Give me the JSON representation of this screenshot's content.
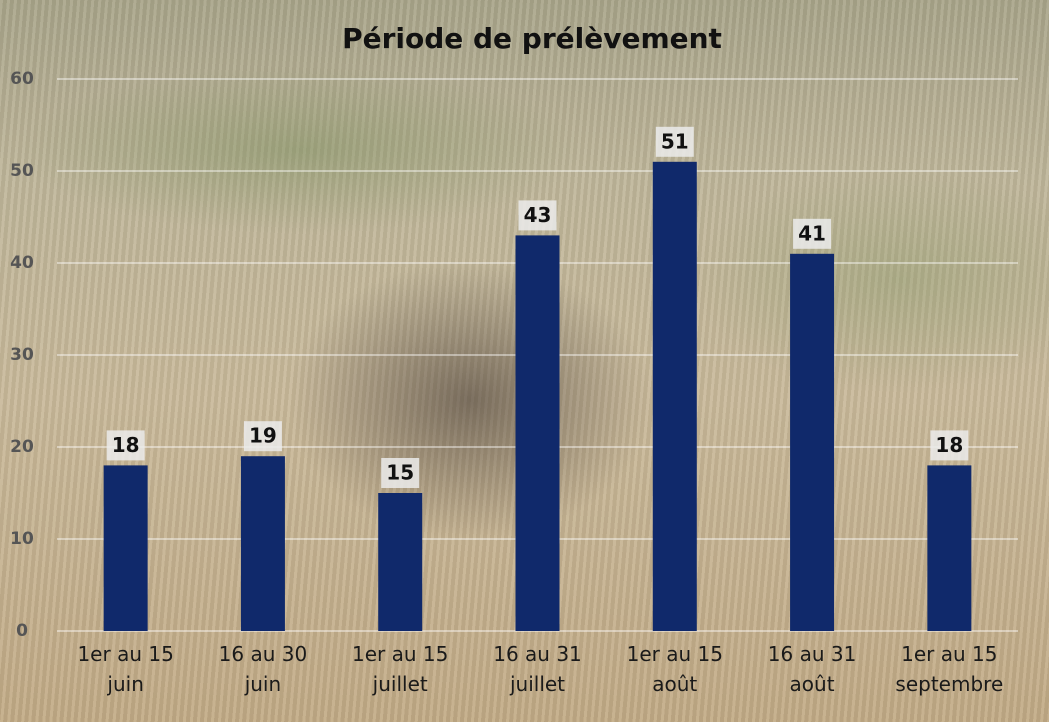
{
  "chart_data": {
    "type": "bar",
    "title": "Période de prélèvement",
    "categories": [
      "1er au 15 juin",
      "16 au 30 juin",
      "1er au 15 juillet",
      "16 au 31 juillet",
      "1er au 15 août",
      "16 au 31 août",
      "1er au 15 septembre"
    ],
    "values": [
      18,
      19,
      15,
      43,
      51,
      41,
      18
    ],
    "color": "#10296b",
    "ylim": [
      0,
      60
    ],
    "yticks": [
      0,
      10,
      20,
      30,
      40,
      50,
      60
    ],
    "grid": true
  }
}
